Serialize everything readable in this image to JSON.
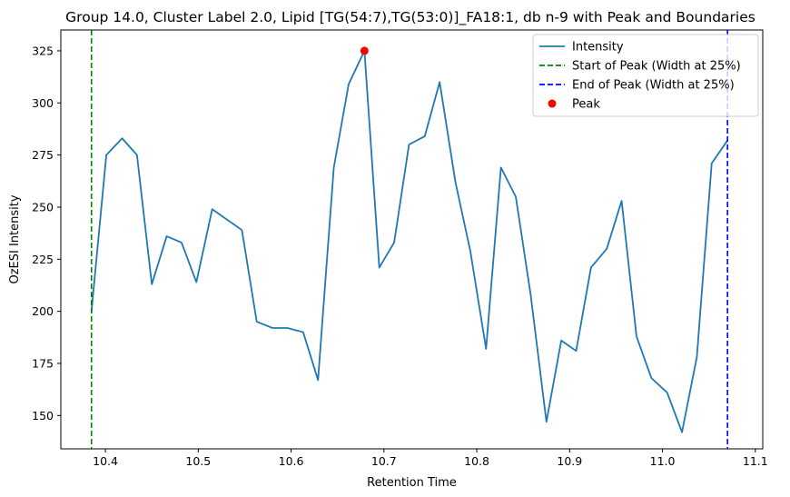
{
  "chart_data": {
    "type": "line",
    "title": "Group 14.0, Cluster Label 2.0, Lipid [TG(54:7),TG(53:0)]_FA18:1, db n-9 with Peak and Boundaries",
    "xlabel": "Retention Time",
    "ylabel": "OzESI Intensity",
    "xlim": [
      10.352,
      11.108
    ],
    "ylim": [
      134,
      335
    ],
    "xticks": [
      10.4,
      10.5,
      10.6,
      10.7,
      10.8,
      10.9,
      11.0,
      11.1
    ],
    "xtick_labels": [
      "10.4",
      "10.5",
      "10.6",
      "10.7",
      "10.8",
      "10.9",
      "11.0",
      "11.1"
    ],
    "yticks": [
      150,
      175,
      200,
      225,
      250,
      275,
      300,
      325
    ],
    "ytick_labels": [
      "150",
      "175",
      "200",
      "225",
      "250",
      "275",
      "300",
      "325"
    ],
    "grid": false,
    "legend_position": "top-right",
    "series": [
      {
        "name": "Intensity",
        "color": "#1f77b4",
        "x": [
          10.385,
          10.401,
          10.418,
          10.434,
          10.45,
          10.466,
          10.482,
          10.498,
          10.515,
          10.531,
          10.547,
          10.563,
          10.58,
          10.596,
          10.613,
          10.629,
          10.646,
          10.662,
          10.679,
          10.695,
          10.711,
          10.727,
          10.744,
          10.76,
          10.777,
          10.793,
          10.81,
          10.826,
          10.842,
          10.858,
          10.875,
          10.891,
          10.907,
          10.923,
          10.94,
          10.956,
          10.972,
          10.988,
          11.005,
          11.021,
          11.037,
          11.053,
          11.07
        ],
        "y": [
          200,
          275,
          283,
          275,
          213,
          236,
          233,
          214,
          249,
          244,
          239,
          195,
          192,
          192,
          190,
          167,
          269,
          309,
          325,
          221,
          233,
          280,
          284,
          310,
          262,
          229,
          182,
          269,
          255,
          208,
          147,
          186,
          181,
          221,
          230,
          253,
          188,
          168,
          161,
          142,
          178,
          271,
          282
        ]
      },
      {
        "name": "Start of Peak (Width at 25%)",
        "color": "#008000",
        "x_value": 10.385
      },
      {
        "name": "End of Peak (Width at 25%)",
        "color": "#0000ff",
        "x_value": 11.07
      },
      {
        "name": "Peak",
        "color": "#ff0000",
        "x": [
          10.679
        ],
        "y": [
          325
        ]
      }
    ]
  }
}
